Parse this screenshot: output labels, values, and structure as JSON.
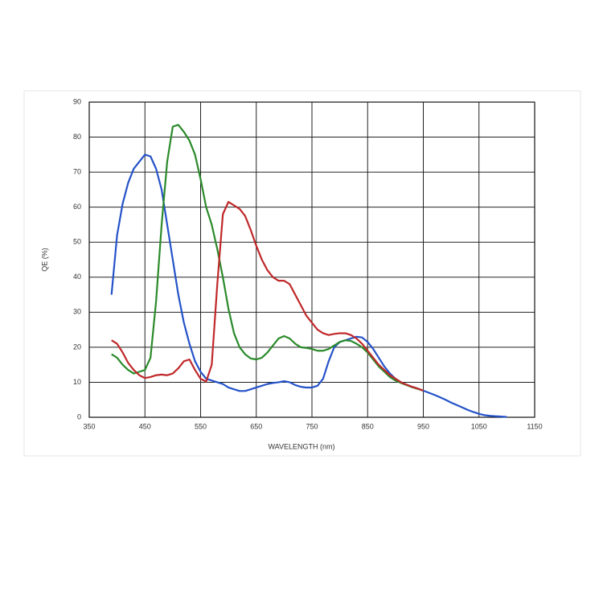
{
  "chart_data": {
    "type": "line",
    "x_label": "WAVELENGTH (nm)",
    "y_label": "QE (%)",
    "x": [
      390,
      400,
      410,
      420,
      430,
      440,
      450,
      460,
      470,
      480,
      490,
      500,
      510,
      520,
      530,
      540,
      550,
      560,
      570,
      580,
      590,
      600,
      610,
      620,
      630,
      640,
      650,
      660,
      670,
      680,
      690,
      700,
      710,
      720,
      730,
      740,
      750,
      760,
      770,
      780,
      790,
      800,
      810,
      820,
      830,
      840,
      850,
      860,
      870,
      880,
      890,
      900,
      910,
      920,
      930,
      940,
      950,
      960,
      970,
      980,
      990,
      1000,
      1010,
      1020,
      1030,
      1040,
      1050,
      1060,
      1070,
      1080,
      1090,
      1100
    ],
    "series": [
      {
        "color": "#2452c8",
        "values": [
          35,
          52,
          61,
          67,
          71,
          73,
          75,
          74.5,
          71,
          65,
          55,
          45,
          35,
          27,
          21,
          16,
          13,
          11,
          10.5,
          10,
          9.5,
          8.5,
          8,
          7.5,
          7.5,
          8,
          8.5,
          9,
          9.5,
          9.8,
          10,
          10.3,
          10,
          9.2,
          8.7,
          8.5,
          8.5,
          9,
          11,
          16,
          20,
          21.5,
          22,
          22.5,
          23,
          22.8,
          21.5,
          19.5,
          17,
          14.5,
          12.5,
          11,
          10,
          9.3,
          8.7,
          8.2,
          7.6,
          7,
          6.4,
          5.7,
          5,
          4.2,
          3.5,
          2.8,
          2.1,
          1.5,
          1,
          0.6,
          0.4,
          0.3,
          0.2,
          0.1
        ]
      },
      {
        "color": "#2a8a2a",
        "values": [
          18,
          17,
          15,
          13.5,
          12.5,
          13,
          13.5,
          17,
          33,
          55,
          73,
          83,
          83.5,
          81.5,
          79,
          75,
          68,
          60,
          55,
          48,
          40,
          31,
          24,
          20,
          18,
          16.8,
          16.5,
          17,
          18.5,
          20.5,
          22.5,
          23.2,
          22.5,
          21,
          20,
          19.8,
          19.5,
          19,
          19,
          19.5,
          20.5,
          21.5,
          22,
          21.8,
          21,
          20,
          18.5,
          16.5,
          14.5,
          13,
          11.5,
          10.5,
          9.8,
          9.2,
          8.6,
          8.1,
          7.6,
          null,
          null,
          null,
          null,
          null,
          null,
          null,
          null,
          null,
          null,
          null,
          null,
          null,
          null,
          null
        ]
      },
      {
        "color": "#c0282a",
        "values": [
          22,
          21,
          18.5,
          15.5,
          13.5,
          12,
          11.2,
          11.5,
          12,
          12.2,
          12,
          12.5,
          14,
          16,
          16.5,
          13.5,
          11,
          10.2,
          15,
          38,
          58,
          61.5,
          60.5,
          59.5,
          57.5,
          53.5,
          49,
          45,
          42,
          40,
          39,
          39,
          38,
          35,
          32,
          29,
          27,
          25,
          24,
          23.5,
          23.8,
          24,
          24,
          23.5,
          22.5,
          21,
          19,
          17,
          15,
          13.5,
          12,
          11,
          10,
          9.3,
          8.7,
          8.2,
          7.6,
          null,
          null,
          null,
          null,
          null,
          null,
          null,
          null,
          null,
          null,
          null,
          null,
          null,
          null,
          null
        ]
      }
    ],
    "xlim": [
      350,
      1150
    ],
    "xticks": [
      350,
      450,
      550,
      650,
      750,
      850,
      950,
      1050,
      1150
    ],
    "ylim": [
      0,
      90
    ],
    "yticks": [
      0,
      10,
      20,
      30,
      40,
      50,
      60,
      70,
      80,
      90
    ],
    "grid": true
  }
}
